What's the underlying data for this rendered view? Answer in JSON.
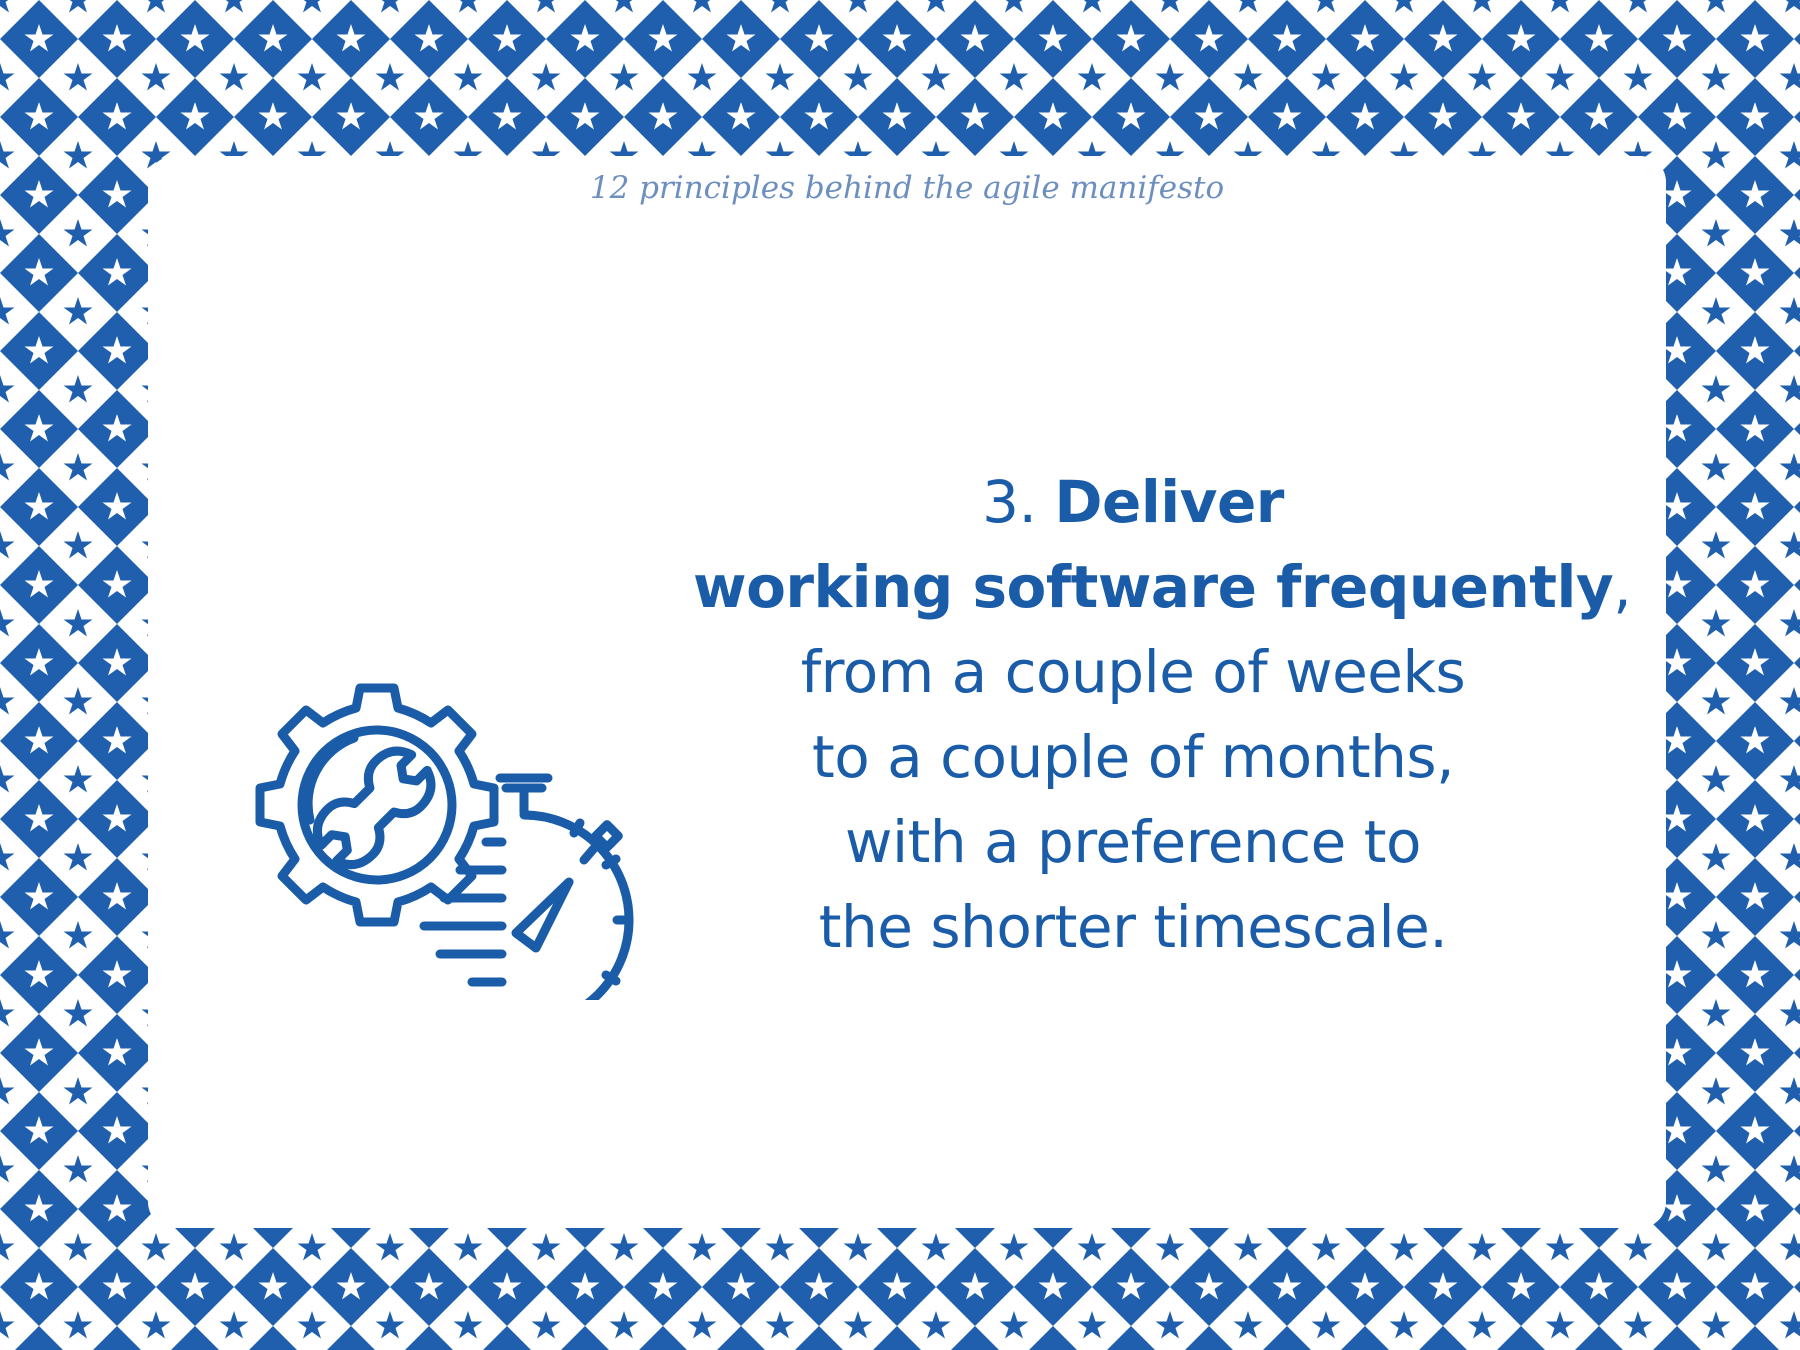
{
  "header": {
    "subtitle": "12 principles behind the agile manifesto"
  },
  "principle": {
    "number": "3.",
    "headline_word": "Deliver",
    "headline_rest": "working software frequently",
    "comma": ",",
    "lines": [
      "from a couple of weeks",
      "to a couple of months,",
      "with a preference to",
      "the shorter timescale."
    ]
  },
  "illustration": {
    "icons": [
      "gear-icon",
      "wrench-icon",
      "stopwatch-icon",
      "speed-lines-icon"
    ]
  },
  "colors": {
    "accent": "#1a5ca8",
    "subtitle": "#6c8fc0",
    "pattern_blue": "#1f5fae",
    "background": "#ffffff"
  }
}
